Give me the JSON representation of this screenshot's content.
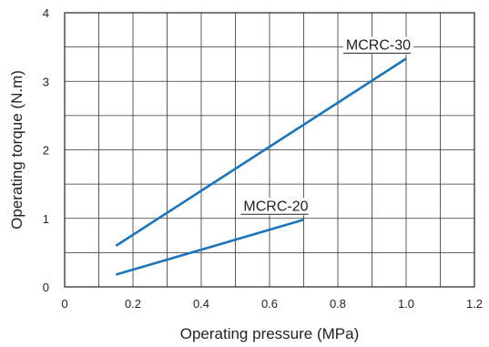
{
  "chart_data": {
    "type": "line",
    "title": "",
    "xlabel": "Operating pressure (MPa)",
    "ylabel": "Operating torque (N.m)",
    "xlim": [
      0,
      1.2
    ],
    "ylim": [
      0,
      4
    ],
    "x_ticks": [
      "0",
      "0.2",
      "0.4",
      "0.6",
      "0.8",
      "1.0",
      "1.2"
    ],
    "y_ticks": [
      "0",
      "1",
      "2",
      "3",
      "4"
    ],
    "grid": true,
    "legend": "none",
    "series": [
      {
        "name": "MCRC-30",
        "color": "#1b75bb",
        "x": [
          0.15,
          1.0
        ],
        "y": [
          0.6,
          3.33
        ]
      },
      {
        "name": "MCRC-20",
        "color": "#1b75bb",
        "x": [
          0.15,
          0.7
        ],
        "y": [
          0.18,
          0.98
        ]
      }
    ]
  }
}
